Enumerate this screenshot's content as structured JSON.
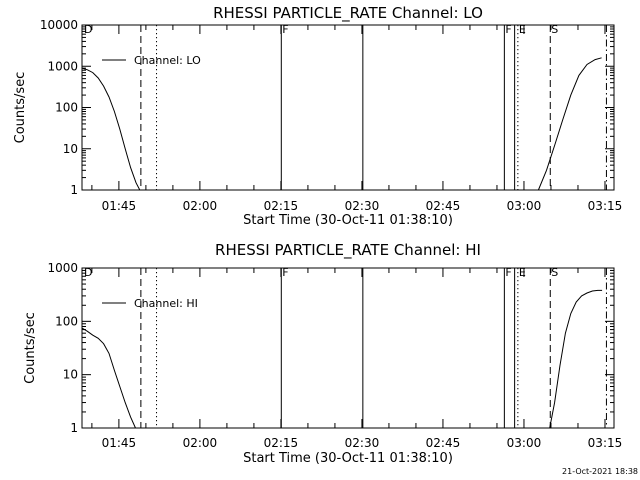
{
  "footer_timestamp": "21-Oct-2021 18:38",
  "chart_data": [
    {
      "type": "line",
      "title": "RHESSI PARTICLE_RATE Channel: LO",
      "xlabel": "Start Time (30-Oct-11 01:38:10)",
      "ylabel": "Counts/sec",
      "y_scale": "log",
      "ylim": [
        1,
        10000
      ],
      "xlim_minutes": [
        0,
        98.5
      ],
      "x_tick_labels": [
        "01:45",
        "02:00",
        "02:15",
        "02:30",
        "02:45",
        "03:00",
        "03:15"
      ],
      "x_tick_minutes": [
        6.83,
        21.83,
        36.83,
        51.83,
        66.83,
        81.83,
        96.83
      ],
      "y_tick_labels": [
        "1",
        "10",
        "100",
        "1000",
        "10000"
      ],
      "y_tick_values": [
        1,
        10,
        100,
        1000,
        10000
      ],
      "legend": {
        "label": "Channel: LO",
        "position": "top-left"
      },
      "series": [
        {
          "name": "Channel: LO",
          "segments": [
            {
              "x": [
                0,
                1,
                2,
                3,
                4,
                5,
                6,
                7,
                8,
                9,
                10,
                10.7
              ],
              "y": [
                900,
                820,
                700,
                520,
                330,
                180,
                80,
                30,
                10,
                3.5,
                1.5,
                1
              ]
            },
            {
              "x": [
                84.5,
                86,
                87.5,
                89,
                90.5,
                92,
                93.5,
                95,
                96.2
              ],
              "y": [
                1,
                3,
                12,
                50,
                200,
                600,
                1100,
                1450,
                1600
              ]
            }
          ]
        }
      ],
      "vlines": [
        {
          "x": 10.9,
          "style": "dashed",
          "label": ""
        },
        {
          "x": 13.8,
          "style": "dotted",
          "label": ""
        },
        {
          "x": 36.9,
          "style": "solid",
          "label": "F"
        },
        {
          "x": 52.0,
          "style": "solid",
          "label": ""
        },
        {
          "x": 78.2,
          "style": "solid",
          "label": "F"
        },
        {
          "x": 80.1,
          "style": "solid",
          "label": ""
        },
        {
          "x": 80.7,
          "style": "dotted",
          "label": "E"
        },
        {
          "x": 86.7,
          "style": "dashed",
          "label": "S"
        },
        {
          "x": 97.1,
          "style": "dashdot",
          "label": ""
        }
      ],
      "corner_label": "D"
    },
    {
      "type": "line",
      "title": "RHESSI PARTICLE_RATE Channel: HI",
      "xlabel": "Start Time (30-Oct-11 01:38:10)",
      "ylabel": "Counts/sec",
      "y_scale": "log",
      "ylim": [
        1,
        1000
      ],
      "xlim_minutes": [
        0,
        98.5
      ],
      "x_tick_labels": [
        "01:45",
        "02:00",
        "02:15",
        "02:30",
        "02:45",
        "03:00",
        "03:15"
      ],
      "x_tick_minutes": [
        6.83,
        21.83,
        36.83,
        51.83,
        66.83,
        81.83,
        96.83
      ],
      "y_tick_labels": [
        "1",
        "10",
        "100",
        "1000"
      ],
      "y_tick_values": [
        1,
        10,
        100,
        1000
      ],
      "legend": {
        "label": "Channel: HI",
        "position": "top-left"
      },
      "series": [
        {
          "name": "Channel: HI",
          "segments": [
            {
              "x": [
                0,
                1,
                2,
                3,
                4,
                5,
                6,
                7,
                8,
                9,
                9.9
              ],
              "y": [
                75,
                65,
                55,
                48,
                38,
                25,
                12,
                6,
                3,
                1.6,
                1
              ]
            },
            {
              "x": [
                86.6,
                87.5,
                88.5,
                89.5,
                90.5,
                91.5,
                92.5,
                93.5,
                94.5,
                95.5,
                96.3
              ],
              "y": [
                1,
                3,
                15,
                60,
                140,
                230,
                300,
                340,
                370,
                380,
                380
              ]
            }
          ]
        }
      ],
      "vlines": [
        {
          "x": 10.9,
          "style": "dashed",
          "label": ""
        },
        {
          "x": 13.8,
          "style": "dotted",
          "label": ""
        },
        {
          "x": 36.9,
          "style": "solid",
          "label": "F"
        },
        {
          "x": 52.0,
          "style": "solid",
          "label": ""
        },
        {
          "x": 78.2,
          "style": "solid",
          "label": "F"
        },
        {
          "x": 80.1,
          "style": "solid",
          "label": ""
        },
        {
          "x": 80.7,
          "style": "dotted",
          "label": "E"
        },
        {
          "x": 86.7,
          "style": "dashed",
          "label": "S"
        },
        {
          "x": 97.1,
          "style": "dashdot",
          "label": ""
        }
      ],
      "corner_label": "D"
    }
  ]
}
